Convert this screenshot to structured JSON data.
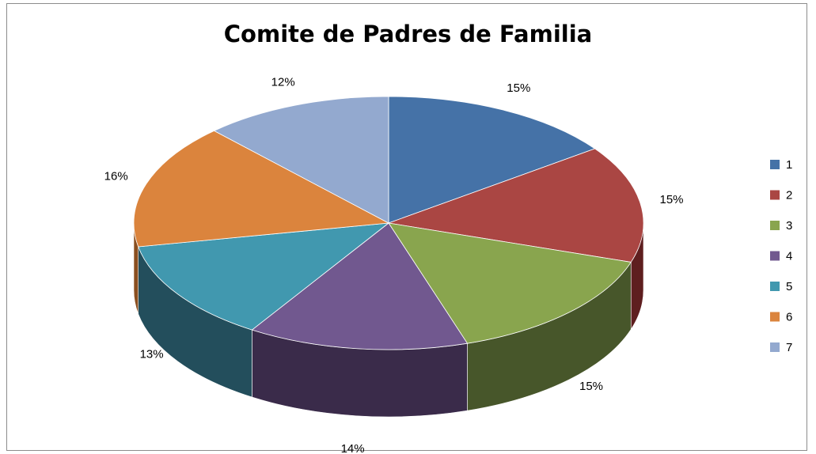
{
  "chart_data": {
    "type": "pie",
    "title": "Comite de Padres de Familia",
    "categories": [
      "1",
      "2",
      "3",
      "4",
      "5",
      "6",
      "7"
    ],
    "values": [
      15,
      15,
      15,
      14,
      13,
      16,
      12
    ],
    "labels": [
      "15%",
      "15%",
      "15%",
      "14%",
      "13%",
      "16%",
      "12%"
    ],
    "colors": [
      "#4572a7",
      "#aa4643",
      "#89a54e",
      "#71588f",
      "#4198af",
      "#db843d",
      "#93a9cf"
    ],
    "side_colors": [
      "#2c4a6e",
      "#5e1e1f",
      "#47562a",
      "#3a2b4a",
      "#234e5c",
      "#8a4f20",
      "#5c6c8a"
    ],
    "legend": {
      "position": "right",
      "entries": [
        "1",
        "2",
        "3",
        "4",
        "5",
        "6",
        "7"
      ]
    },
    "style": "3d"
  }
}
